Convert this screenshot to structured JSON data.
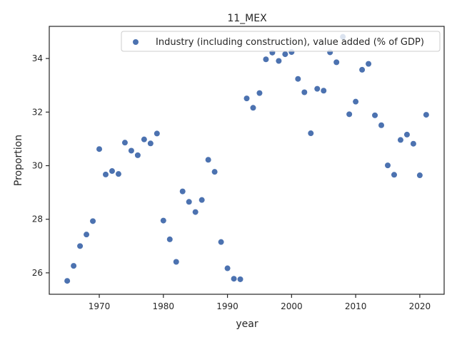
{
  "chart_data": {
    "type": "scatter",
    "title": "11_MEX",
    "xlabel": "year",
    "ylabel": "Proportion",
    "xlim": [
      1962.2,
      2023.8
    ],
    "ylim": [
      25.2,
      35.2
    ],
    "xticks": [
      1970,
      1980,
      1990,
      2000,
      2010,
      2020
    ],
    "yticks": [
      26,
      28,
      30,
      32,
      34
    ],
    "grid": false,
    "legend_position": "top-right",
    "series": [
      {
        "name": "Industry (including construction), value added (% of GDP)",
        "color": "#4c72b0",
        "x": [
          1965,
          1966,
          1967,
          1968,
          1969,
          1970,
          1971,
          1972,
          1973,
          1974,
          1975,
          1976,
          1977,
          1978,
          1979,
          1980,
          1981,
          1982,
          1983,
          1984,
          1985,
          1986,
          1987,
          1988,
          1989,
          1990,
          1991,
          1992,
          1993,
          1994,
          1995,
          1996,
          1997,
          1998,
          1999,
          2000,
          2001,
          2002,
          2003,
          2004,
          2005,
          2006,
          2007,
          2008,
          2009,
          2010,
          2011,
          2012,
          2013,
          2014,
          2015,
          2016,
          2017,
          2018,
          2019,
          2020,
          2021
        ],
        "y": [
          25.7,
          26.26,
          27.0,
          27.43,
          27.93,
          30.62,
          29.67,
          29.8,
          29.69,
          30.86,
          30.56,
          30.39,
          30.98,
          30.83,
          31.2,
          27.95,
          27.25,
          26.41,
          29.04,
          28.65,
          28.27,
          28.72,
          30.22,
          29.77,
          27.15,
          26.17,
          25.78,
          25.76,
          32.51,
          32.16,
          32.71,
          33.97,
          34.22,
          33.91,
          34.16,
          34.24,
          33.24,
          32.74,
          31.21,
          32.87,
          32.8,
          34.23,
          33.86,
          34.81,
          31.92,
          32.39,
          33.58,
          33.8,
          31.88,
          31.51,
          30.01,
          29.66,
          30.96,
          31.16,
          30.82,
          29.64,
          31.9
        ]
      }
    ]
  }
}
